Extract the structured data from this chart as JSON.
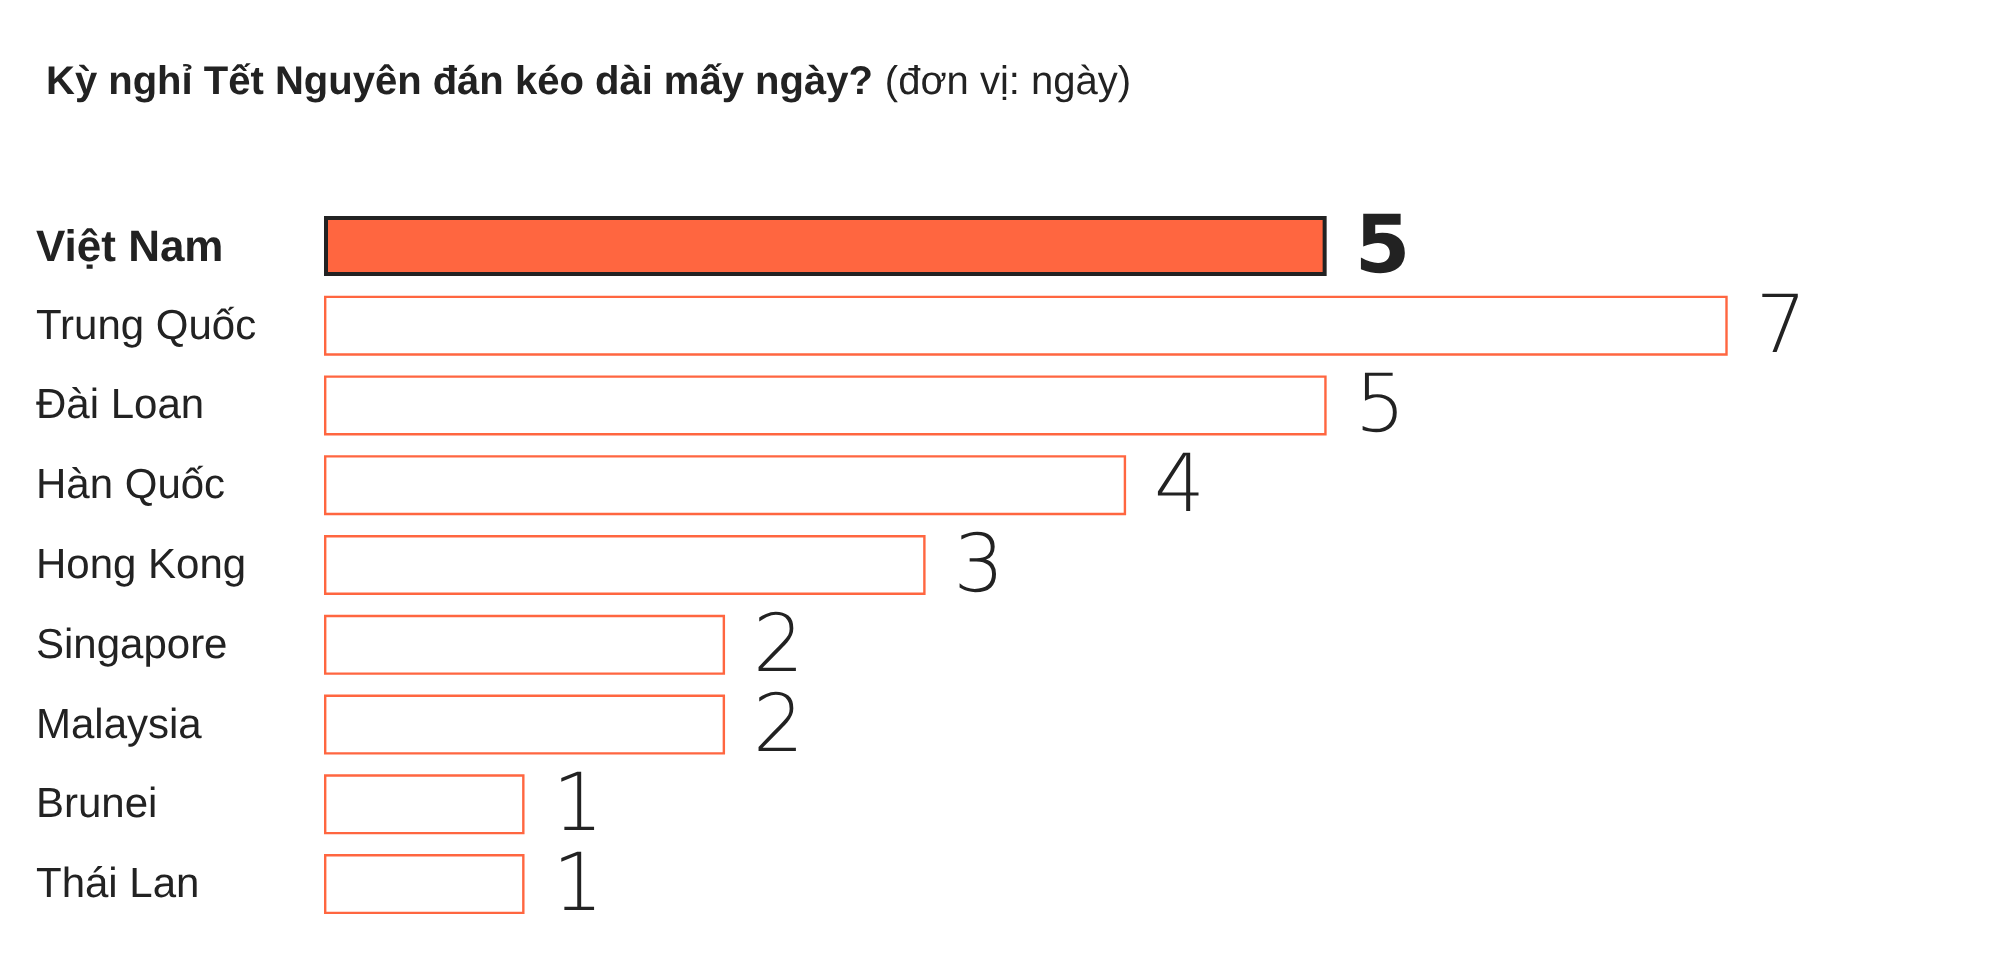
{
  "chart_data": {
    "type": "bar",
    "orientation": "horizontal",
    "title": "Kỳ nghỉ Tết Nguyên đán kéo dài mấy ngày?",
    "subtitle": "(đơn vị: ngày)",
    "categories": [
      "Việt Nam",
      "Trung Quốc",
      "Đài Loan",
      "Hàn Quốc",
      "Hong Kong",
      "Singapore",
      "Malaysia",
      "Brunei",
      "Thái Lan"
    ],
    "values": [
      5,
      7,
      5,
      4,
      3,
      2,
      2,
      1,
      1
    ],
    "colors": [
      "#ff6640",
      "#ffffff",
      "#ffffff",
      "#ffffff",
      "#ffffff",
      "#ffffff",
      "#ffffff",
      "#ffffff",
      "#ffffff"
    ],
    "data_labels": true
  }
}
